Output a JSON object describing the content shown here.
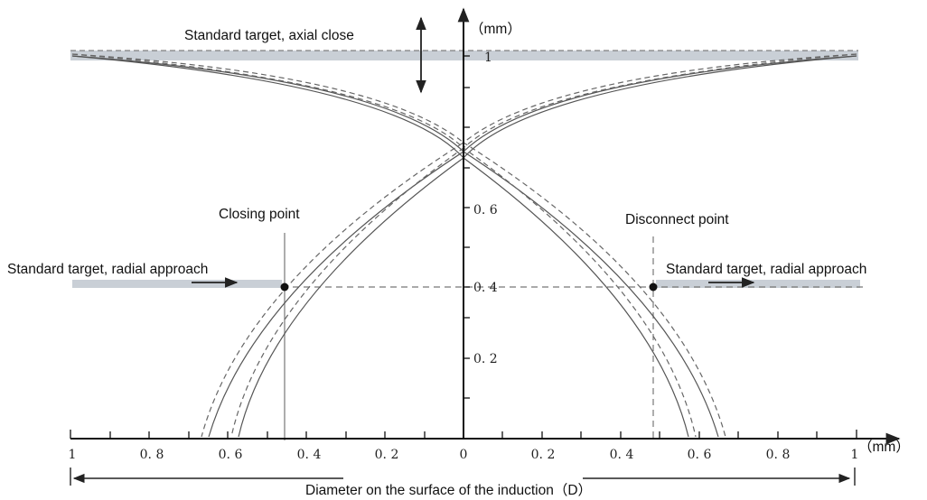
{
  "labels": {
    "top_unit": "（mm）",
    "right_unit": "（mm）",
    "axial": "Standard target, axial close",
    "radial_left": "Standard target, radial approach",
    "radial_right": "Standard target, radial approach",
    "closing": "Closing point",
    "disconnect": "Disconnect point",
    "bottom_caption": "Diameter on the surface of the induction（D）"
  },
  "axis": {
    "x_ticks": [
      {
        "label": "1",
        "value": -1
      },
      {
        "label": "0. 8",
        "value": -0.8
      },
      {
        "label": "0. 6",
        "value": -0.6
      },
      {
        "label": "0. 4",
        "value": -0.4
      },
      {
        "label": "0. 2",
        "value": -0.2
      },
      {
        "label": "0",
        "value": 0
      },
      {
        "label": "0. 2",
        "value": 0.2
      },
      {
        "label": "0. 4",
        "value": 0.4
      },
      {
        "label": "0. 6",
        "value": 0.6
      },
      {
        "label": "0. 8",
        "value": 0.8
      },
      {
        "label": "1",
        "value": 1
      }
    ],
    "y_ticks": [
      {
        "label": "0. 2",
        "value": 0.2
      },
      {
        "label": "0. 4",
        "value": 0.4
      },
      {
        "label": "0. 6",
        "value": 0.6
      },
      {
        "label": "1",
        "value": 1
      }
    ]
  },
  "chart_data": {
    "type": "line",
    "x_range": [
      -1,
      1
    ],
    "y_range": [
      0,
      1
    ],
    "operating_height": 0.4,
    "closing_point": [
      -0.46,
      0.4
    ],
    "disconnect_point": [
      0.48,
      0.4
    ],
    "crossing_height": 0.78,
    "curve_feet": {
      "solid": [
        -0.66,
        -0.58,
        0.58,
        0.66
      ],
      "dashed": [
        -0.68,
        -0.6,
        0.6,
        0.68
      ]
    }
  }
}
